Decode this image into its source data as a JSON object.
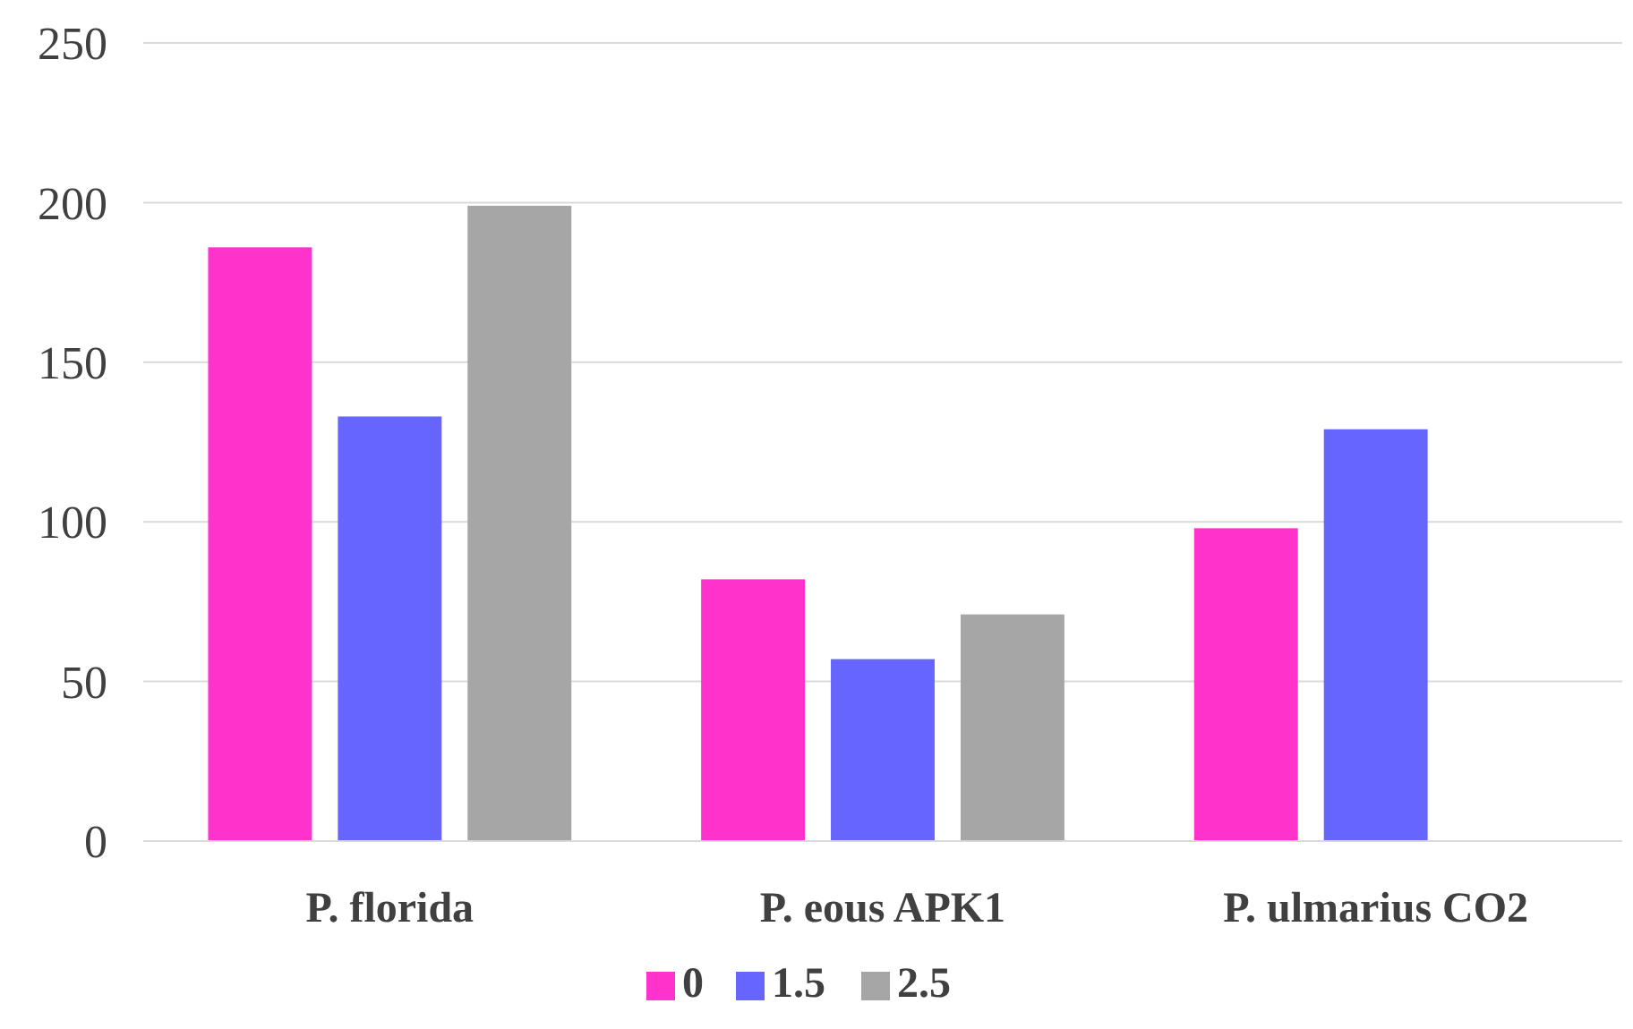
{
  "chart_data": {
    "type": "bar",
    "categories": [
      "P. florida",
      "P. eous APK1",
      "P. ulmarius CO2"
    ],
    "series": [
      {
        "name": "0",
        "color": "#ff33cc",
        "values": [
          186,
          82,
          98
        ]
      },
      {
        "name": "1.5",
        "color": "#6666ff",
        "values": [
          133,
          57,
          129
        ]
      },
      {
        "name": "2.5",
        "color": "#a6a6a6",
        "values": [
          199,
          71,
          null
        ]
      }
    ],
    "ylim": [
      0,
      250
    ],
    "yticks": [
      0,
      50,
      100,
      150,
      200,
      250
    ],
    "grid": "y",
    "legend": "bottom"
  }
}
